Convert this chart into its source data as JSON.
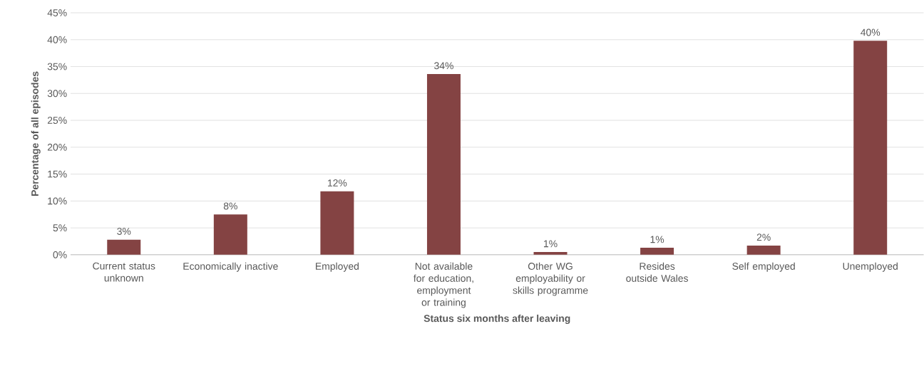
{
  "chart_data": {
    "type": "bar",
    "xlabel": "Status six months after leaving",
    "ylabel": "Percentage of all episodes",
    "categories": [
      "Current status unknown",
      "Economically inactive",
      "Employed",
      "Not available for education, employment or training",
      "Other WG employability or skills programme",
      "Resides outside Wales",
      "Self employed",
      "Unemployed"
    ],
    "values": [
      2.8,
      7.5,
      11.8,
      33.6,
      0.5,
      1.3,
      1.7,
      39.8
    ],
    "value_labels": [
      "3%",
      "8%",
      "12%",
      "34%",
      "1%",
      "1%",
      "2%",
      "40%"
    ],
    "color": "#844343",
    "ylim": [
      0,
      45
    ],
    "yticks": [
      {
        "value": 0,
        "label": "0%"
      },
      {
        "value": 5,
        "label": "5%"
      },
      {
        "value": 10,
        "label": "10%"
      },
      {
        "value": 15,
        "label": "15%"
      },
      {
        "value": 20,
        "label": "20%"
      },
      {
        "value": 25,
        "label": "25%"
      },
      {
        "value": 30,
        "label": "30%"
      },
      {
        "value": 35,
        "label": "35%"
      },
      {
        "value": 40,
        "label": "40%"
      },
      {
        "value": 45,
        "label": "45%"
      }
    ],
    "grid": "y"
  }
}
